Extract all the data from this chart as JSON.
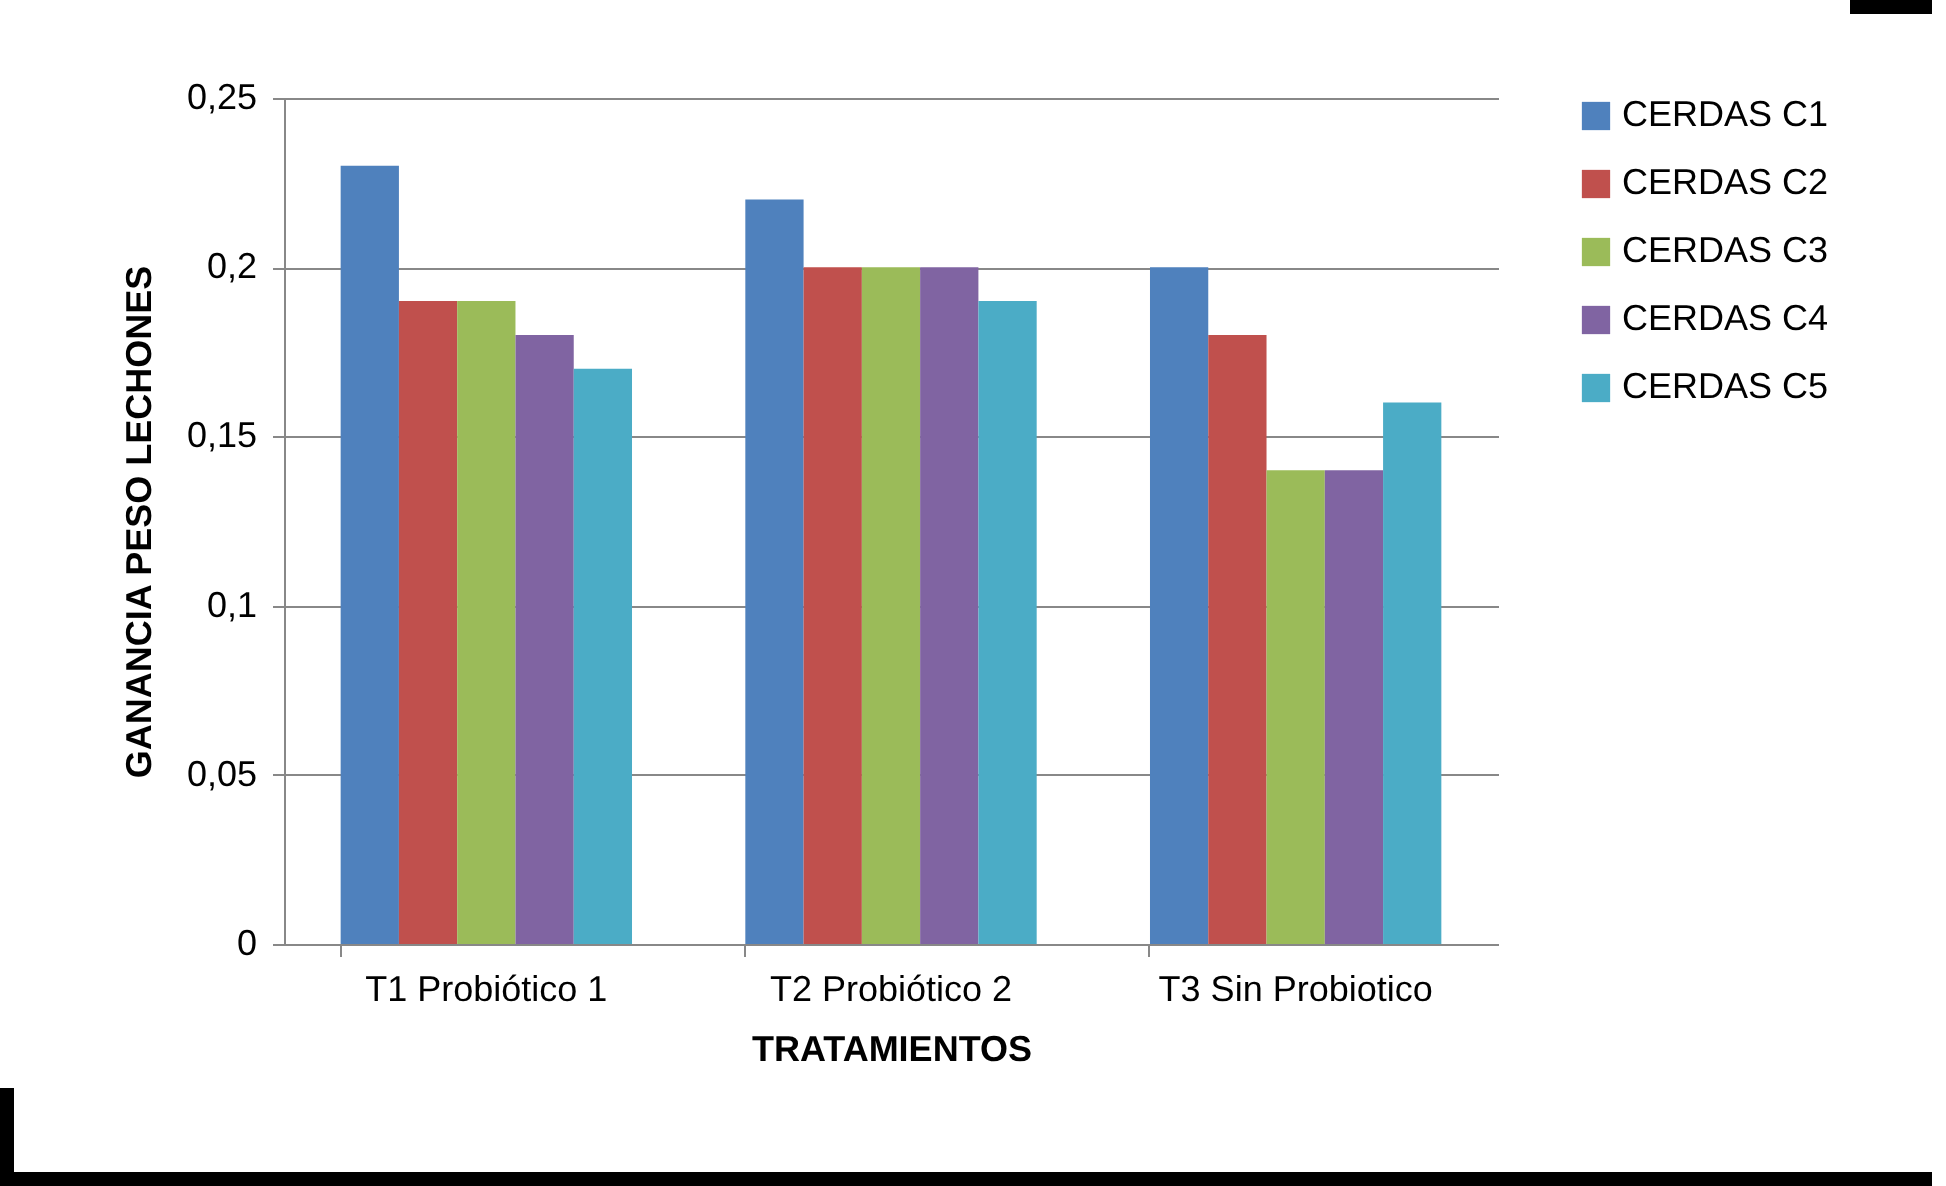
{
  "chart_data": {
    "type": "bar",
    "xlabel": "TRATAMIENTOS",
    "ylabel": "GANANCIA PESO LECHONES",
    "categories": [
      "T1 Probiótico 1",
      "T2 Probiótico 2",
      "T3 Sin Probiotico"
    ],
    "series": [
      {
        "name": "CERDAS C1",
        "color": "#4f81bd",
        "values": [
          0.23,
          0.22,
          0.2
        ]
      },
      {
        "name": "CERDAS C2",
        "color": "#c0504d",
        "values": [
          0.19,
          0.2,
          0.18
        ]
      },
      {
        "name": "CERDAS C3",
        "color": "#9bbb59",
        "values": [
          0.19,
          0.2,
          0.14
        ]
      },
      {
        "name": "CERDAS C4",
        "color": "#8064a2",
        "values": [
          0.18,
          0.2,
          0.14
        ]
      },
      {
        "name": "CERDAS C5",
        "color": "#4bacc6",
        "values": [
          0.17,
          0.19,
          0.16
        ]
      }
    ],
    "ylim": [
      0,
      0.25
    ],
    "yticks": [
      {
        "value": 0,
        "label": "0"
      },
      {
        "value": 0.05,
        "label": "0,05"
      },
      {
        "value": 0.1,
        "label": "0,1"
      },
      {
        "value": 0.15,
        "label": "0,15"
      },
      {
        "value": 0.2,
        "label": "0,2"
      },
      {
        "value": 0.25,
        "label": "0,25"
      }
    ],
    "grid": "y",
    "legend": "right"
  }
}
